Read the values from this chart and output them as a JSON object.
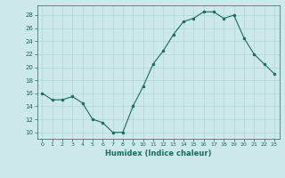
{
  "x": [
    0,
    1,
    2,
    3,
    4,
    5,
    6,
    7,
    8,
    9,
    10,
    11,
    12,
    13,
    14,
    15,
    16,
    17,
    18,
    19,
    20,
    21,
    22,
    23
  ],
  "y": [
    16,
    15,
    15,
    15.5,
    14.5,
    12,
    11.5,
    10,
    10,
    14,
    17,
    20.5,
    22.5,
    25,
    27,
    27.5,
    28.5,
    28.5,
    27.5,
    28,
    24.5,
    22,
    20.5,
    19
  ],
  "xlabel": "Humidex (Indice chaleur)",
  "xlim": [
    -0.5,
    23.5
  ],
  "ylim": [
    9,
    29.5
  ],
  "yticks": [
    10,
    12,
    14,
    16,
    18,
    20,
    22,
    24,
    26,
    28
  ],
  "xticks": [
    0,
    1,
    2,
    3,
    4,
    5,
    6,
    7,
    8,
    9,
    10,
    11,
    12,
    13,
    14,
    15,
    16,
    17,
    18,
    19,
    20,
    21,
    22,
    23
  ],
  "line_color": "#1a6b5a",
  "marker_color": "#1a6b5a",
  "bg_color": "#cce8e8",
  "grid_color": "#aed4d4",
  "label_color": "#1a6b5a",
  "tick_color": "#1a6b5a"
}
